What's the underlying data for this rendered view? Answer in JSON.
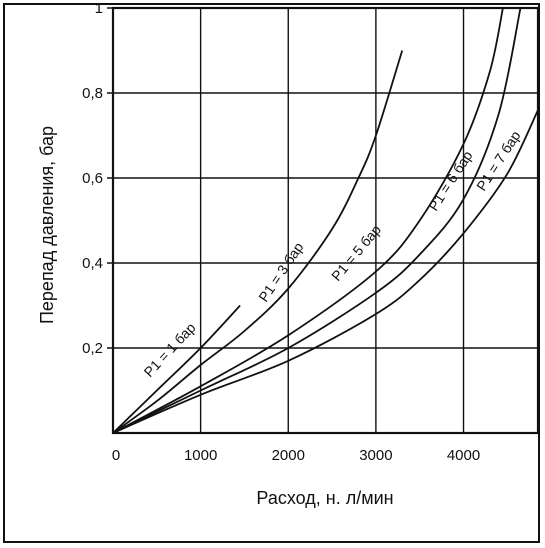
{
  "chart_data": {
    "type": "line",
    "xlabel": "Расход, н. л/мин",
    "ylabel": "Перепад давления, бар",
    "xlim": [
      0,
      4850
    ],
    "ylim": [
      0,
      1
    ],
    "grid": true,
    "x_ticks": [
      {
        "value": 0,
        "label": "0"
      },
      {
        "value": 1000,
        "label": "1000"
      },
      {
        "value": 2000,
        "label": "2000"
      },
      {
        "value": 3000,
        "label": "3000"
      },
      {
        "value": 4000,
        "label": "4000"
      }
    ],
    "y_ticks": [
      {
        "value": 0.2,
        "label": "0,2"
      },
      {
        "value": 0.4,
        "label": "0,4"
      },
      {
        "value": 0.6,
        "label": "0,6"
      },
      {
        "value": 0.8,
        "label": "0,8"
      },
      {
        "value": 1.0,
        "label": "1"
      }
    ],
    "series": [
      {
        "name": "P1 = 1 бар",
        "points": [
          [
            0,
            0
          ],
          [
            500,
            0.1
          ],
          [
            1000,
            0.2
          ],
          [
            1450,
            0.3
          ]
        ]
      },
      {
        "name": "P1 = 3 бар",
        "points": [
          [
            0,
            0
          ],
          [
            500,
            0.075
          ],
          [
            1000,
            0.16
          ],
          [
            1500,
            0.24
          ],
          [
            2000,
            0.34
          ],
          [
            2500,
            0.48
          ],
          [
            2800,
            0.6
          ],
          [
            3000,
            0.7
          ],
          [
            3300,
            0.9
          ]
        ]
      },
      {
        "name": "P1 = 5 бар",
        "points": [
          [
            0,
            0
          ],
          [
            1000,
            0.11
          ],
          [
            2000,
            0.23
          ],
          [
            3000,
            0.38
          ],
          [
            3500,
            0.5
          ],
          [
            4000,
            0.68
          ],
          [
            4300,
            0.85
          ],
          [
            4450,
            1.0
          ]
        ]
      },
      {
        "name": "P1 = 6 бар",
        "points": [
          [
            0,
            0
          ],
          [
            1000,
            0.1
          ],
          [
            2000,
            0.2
          ],
          [
            3000,
            0.33
          ],
          [
            3500,
            0.42
          ],
          [
            4000,
            0.55
          ],
          [
            4400,
            0.75
          ],
          [
            4650,
            1.0
          ]
        ]
      },
      {
        "name": "P1 = 7 бар",
        "points": [
          [
            0,
            0
          ],
          [
            1000,
            0.09
          ],
          [
            2000,
            0.17
          ],
          [
            3000,
            0.28
          ],
          [
            3500,
            0.36
          ],
          [
            4000,
            0.47
          ],
          [
            4500,
            0.61
          ],
          [
            4850,
            0.76
          ]
        ]
      }
    ]
  }
}
